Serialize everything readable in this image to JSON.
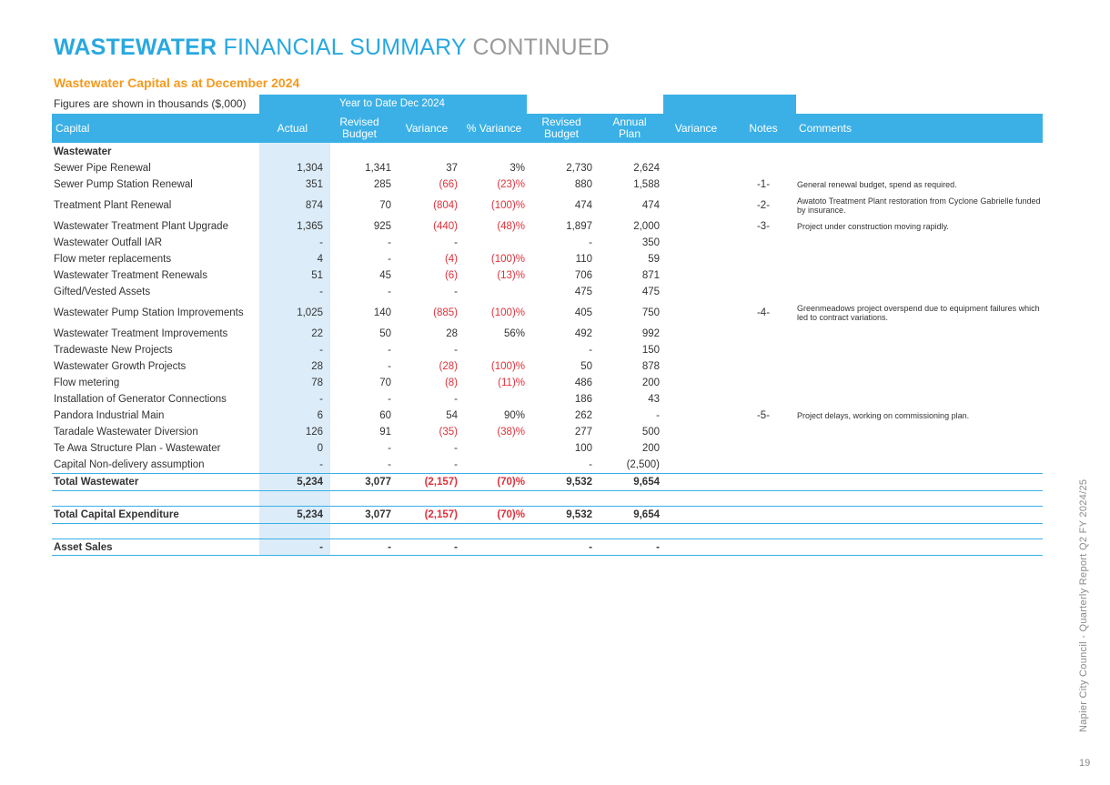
{
  "title": {
    "part1": "WASTEWATER",
    "part2": "FINANCIAL SUMMARY",
    "part3": "CONTINUED"
  },
  "subtitle": "Wastewater Capital as at December 2024",
  "figures_note": "Figures are shown in thousands ($,000)",
  "period_label": "Year to Date  Dec 2024",
  "headers": {
    "capital": "Capital",
    "actual": "Actual",
    "revised_budget_ytd": "Revised Budget",
    "variance_ytd": "Variance",
    "pct_variance": "% Variance",
    "revised_budget": "Revised Budget",
    "annual_plan": "Annual Plan",
    "variance": "Variance",
    "notes": "Notes",
    "comments": "Comments"
  },
  "section_label": "Wastewater",
  "rows": [
    {
      "label": "Sewer Pipe Renewal",
      "actual": "1,304",
      "revised_budget_ytd": "1,341",
      "variance_ytd": "37",
      "pct_variance": "3%",
      "revised_budget": "2,730",
      "annual_plan": "2,624",
      "variance": "",
      "note": "",
      "comment": ""
    },
    {
      "label": "Sewer Pump Station Renewal",
      "actual": "351",
      "revised_budget_ytd": "285",
      "variance_ytd": "(66)",
      "pct_variance": "(23)%",
      "revised_budget": "880",
      "annual_plan": "1,588",
      "variance": "",
      "note": "-1-",
      "comment": "General renewal budget, spend as required."
    },
    {
      "label": "Treatment Plant Renewal",
      "actual": "874",
      "revised_budget_ytd": "70",
      "variance_ytd": "(804)",
      "pct_variance": "(100)%",
      "revised_budget": "474",
      "annual_plan": "474",
      "variance": "",
      "note": "-2-",
      "comment": "Awatoto Treatment Plant restoration from Cyclone Gabrielle funded by insurance."
    },
    {
      "label": "Wastewater Treatment Plant Upgrade",
      "actual": "1,365",
      "revised_budget_ytd": "925",
      "variance_ytd": "(440)",
      "pct_variance": "(48)%",
      "revised_budget": "1,897",
      "annual_plan": "2,000",
      "variance": "",
      "note": "-3-",
      "comment": "Project under construction moving rapidly."
    },
    {
      "label": "Wastewater Outfall IAR",
      "actual": "-",
      "revised_budget_ytd": "-",
      "variance_ytd": "-",
      "pct_variance": "",
      "revised_budget": "-",
      "annual_plan": "350",
      "variance": "",
      "note": "",
      "comment": ""
    },
    {
      "label": "Flow meter replacements",
      "actual": "4",
      "revised_budget_ytd": "-",
      "variance_ytd": "(4)",
      "pct_variance": "(100)%",
      "revised_budget": "110",
      "annual_plan": "59",
      "variance": "",
      "note": "",
      "comment": ""
    },
    {
      "label": "Wastewater Treatment Renewals",
      "actual": "51",
      "revised_budget_ytd": "45",
      "variance_ytd": "(6)",
      "pct_variance": "(13)%",
      "revised_budget": "706",
      "annual_plan": "871",
      "variance": "",
      "note": "",
      "comment": ""
    },
    {
      "label": "Gifted/Vested Assets",
      "actual": "-",
      "revised_budget_ytd": "-",
      "variance_ytd": "-",
      "pct_variance": "",
      "revised_budget": "475",
      "annual_plan": "475",
      "variance": "",
      "note": "",
      "comment": ""
    },
    {
      "label": "Wastewater Pump Station Improvements",
      "actual": "1,025",
      "revised_budget_ytd": "140",
      "variance_ytd": "(885)",
      "pct_variance": "(100)%",
      "revised_budget": "405",
      "annual_plan": "750",
      "variance": "",
      "note": "-4-",
      "comment": "Greenmeadows project overspend due to equipment failures which led to contract variations."
    },
    {
      "label": "Wastewater Treatment Improvements",
      "actual": "22",
      "revised_budget_ytd": "50",
      "variance_ytd": "28",
      "pct_variance": "56%",
      "revised_budget": "492",
      "annual_plan": "992",
      "variance": "",
      "note": "",
      "comment": ""
    },
    {
      "label": "Tradewaste New Projects",
      "actual": "-",
      "revised_budget_ytd": "-",
      "variance_ytd": "-",
      "pct_variance": "",
      "revised_budget": "-",
      "annual_plan": "150",
      "variance": "",
      "note": "",
      "comment": ""
    },
    {
      "label": "Wastewater Growth Projects",
      "actual": "28",
      "revised_budget_ytd": "-",
      "variance_ytd": "(28)",
      "pct_variance": "(100)%",
      "revised_budget": "50",
      "annual_plan": "878",
      "variance": "",
      "note": "",
      "comment": ""
    },
    {
      "label": "Flow metering",
      "actual": "78",
      "revised_budget_ytd": "70",
      "variance_ytd": "(8)",
      "pct_variance": "(11)%",
      "revised_budget": "486",
      "annual_plan": "200",
      "variance": "",
      "note": "",
      "comment": ""
    },
    {
      "label": "Installation of Generator Connections",
      "actual": "-",
      "revised_budget_ytd": "-",
      "variance_ytd": "-",
      "pct_variance": "",
      "revised_budget": "186",
      "annual_plan": "43",
      "variance": "",
      "note": "",
      "comment": ""
    },
    {
      "label": "Pandora Industrial Main",
      "actual": "6",
      "revised_budget_ytd": "60",
      "variance_ytd": "54",
      "pct_variance": "90%",
      "revised_budget": "262",
      "annual_plan": "-",
      "variance": "",
      "note": "-5-",
      "comment": "Project delays, working on commissioning plan."
    },
    {
      "label": "Taradale Wastewater Diversion",
      "actual": "126",
      "revised_budget_ytd": "91",
      "variance_ytd": "(35)",
      "pct_variance": "(38)%",
      "revised_budget": "277",
      "annual_plan": "500",
      "variance": "",
      "note": "",
      "comment": ""
    },
    {
      "label": "Te Awa Structure Plan - Wastewater",
      "actual": "0",
      "revised_budget_ytd": "-",
      "variance_ytd": "-",
      "pct_variance": "",
      "revised_budget": "100",
      "annual_plan": "200",
      "variance": "",
      "note": "",
      "comment": ""
    },
    {
      "label": "Capital Non-delivery assumption",
      "actual": "-",
      "revised_budget_ytd": "-",
      "variance_ytd": "-",
      "pct_variance": "",
      "revised_budget": "-",
      "annual_plan": "(2,500)",
      "variance": "",
      "note": "",
      "comment": ""
    }
  ],
  "totals": [
    {
      "label": "Total Wastewater",
      "actual": "5,234",
      "revised_budget_ytd": "3,077",
      "variance_ytd": "(2,157)",
      "pct_variance": "(70)%",
      "revised_budget": "9,532",
      "annual_plan": "9,654"
    },
    {
      "label": "Total Capital Expenditure",
      "actual": "5,234",
      "revised_budget_ytd": "3,077",
      "variance_ytd": "(2,157)",
      "pct_variance": "(70)%",
      "revised_budget": "9,532",
      "annual_plan": "9,654"
    },
    {
      "label": "Asset Sales",
      "actual": "-",
      "revised_budget_ytd": "-",
      "variance_ytd": "-",
      "pct_variance": "",
      "revised_budget": "-",
      "annual_plan": "-"
    }
  ],
  "sidebar_text": "Napier City Council - Quarterly Report Q2 FY 2024/25",
  "page_number": "19",
  "colors": {
    "accent_blue": "#3ab0e6",
    "title_blue": "#29a8e0",
    "subtitle_orange": "#f39a1e",
    "negative_red": "#e0303a",
    "actual_column_bg": "#dcecf8"
  }
}
